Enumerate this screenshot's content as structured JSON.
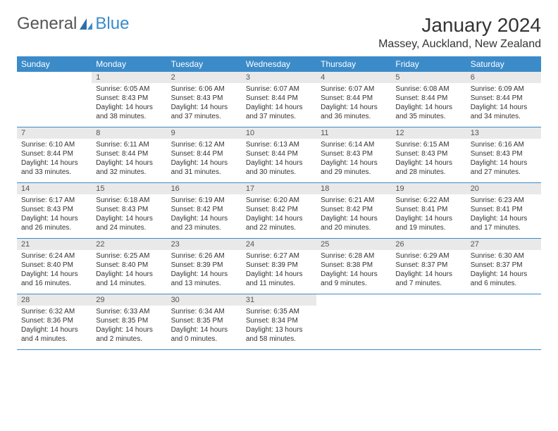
{
  "logo": {
    "text1": "General",
    "text2": "Blue"
  },
  "title": "January 2024",
  "location": "Massey, Auckland, New Zealand",
  "colors": {
    "header_bg": "#3b8bc9",
    "daynum_bg": "#e9e9e9",
    "text": "#333333",
    "rule": "#3b8bc9"
  },
  "dow": [
    "Sunday",
    "Monday",
    "Tuesday",
    "Wednesday",
    "Thursday",
    "Friday",
    "Saturday"
  ],
  "weeks": [
    [
      {
        "n": "",
        "sr": "",
        "ss": "",
        "dl": ""
      },
      {
        "n": "1",
        "sr": "Sunrise: 6:05 AM",
        "ss": "Sunset: 8:43 PM",
        "dl": "Daylight: 14 hours and 38 minutes."
      },
      {
        "n": "2",
        "sr": "Sunrise: 6:06 AM",
        "ss": "Sunset: 8:43 PM",
        "dl": "Daylight: 14 hours and 37 minutes."
      },
      {
        "n": "3",
        "sr": "Sunrise: 6:07 AM",
        "ss": "Sunset: 8:44 PM",
        "dl": "Daylight: 14 hours and 37 minutes."
      },
      {
        "n": "4",
        "sr": "Sunrise: 6:07 AM",
        "ss": "Sunset: 8:44 PM",
        "dl": "Daylight: 14 hours and 36 minutes."
      },
      {
        "n": "5",
        "sr": "Sunrise: 6:08 AM",
        "ss": "Sunset: 8:44 PM",
        "dl": "Daylight: 14 hours and 35 minutes."
      },
      {
        "n": "6",
        "sr": "Sunrise: 6:09 AM",
        "ss": "Sunset: 8:44 PM",
        "dl": "Daylight: 14 hours and 34 minutes."
      }
    ],
    [
      {
        "n": "7",
        "sr": "Sunrise: 6:10 AM",
        "ss": "Sunset: 8:44 PM",
        "dl": "Daylight: 14 hours and 33 minutes."
      },
      {
        "n": "8",
        "sr": "Sunrise: 6:11 AM",
        "ss": "Sunset: 8:44 PM",
        "dl": "Daylight: 14 hours and 32 minutes."
      },
      {
        "n": "9",
        "sr": "Sunrise: 6:12 AM",
        "ss": "Sunset: 8:44 PM",
        "dl": "Daylight: 14 hours and 31 minutes."
      },
      {
        "n": "10",
        "sr": "Sunrise: 6:13 AM",
        "ss": "Sunset: 8:44 PM",
        "dl": "Daylight: 14 hours and 30 minutes."
      },
      {
        "n": "11",
        "sr": "Sunrise: 6:14 AM",
        "ss": "Sunset: 8:43 PM",
        "dl": "Daylight: 14 hours and 29 minutes."
      },
      {
        "n": "12",
        "sr": "Sunrise: 6:15 AM",
        "ss": "Sunset: 8:43 PM",
        "dl": "Daylight: 14 hours and 28 minutes."
      },
      {
        "n": "13",
        "sr": "Sunrise: 6:16 AM",
        "ss": "Sunset: 8:43 PM",
        "dl": "Daylight: 14 hours and 27 minutes."
      }
    ],
    [
      {
        "n": "14",
        "sr": "Sunrise: 6:17 AM",
        "ss": "Sunset: 8:43 PM",
        "dl": "Daylight: 14 hours and 26 minutes."
      },
      {
        "n": "15",
        "sr": "Sunrise: 6:18 AM",
        "ss": "Sunset: 8:43 PM",
        "dl": "Daylight: 14 hours and 24 minutes."
      },
      {
        "n": "16",
        "sr": "Sunrise: 6:19 AM",
        "ss": "Sunset: 8:42 PM",
        "dl": "Daylight: 14 hours and 23 minutes."
      },
      {
        "n": "17",
        "sr": "Sunrise: 6:20 AM",
        "ss": "Sunset: 8:42 PM",
        "dl": "Daylight: 14 hours and 22 minutes."
      },
      {
        "n": "18",
        "sr": "Sunrise: 6:21 AM",
        "ss": "Sunset: 8:42 PM",
        "dl": "Daylight: 14 hours and 20 minutes."
      },
      {
        "n": "19",
        "sr": "Sunrise: 6:22 AM",
        "ss": "Sunset: 8:41 PM",
        "dl": "Daylight: 14 hours and 19 minutes."
      },
      {
        "n": "20",
        "sr": "Sunrise: 6:23 AM",
        "ss": "Sunset: 8:41 PM",
        "dl": "Daylight: 14 hours and 17 minutes."
      }
    ],
    [
      {
        "n": "21",
        "sr": "Sunrise: 6:24 AM",
        "ss": "Sunset: 8:40 PM",
        "dl": "Daylight: 14 hours and 16 minutes."
      },
      {
        "n": "22",
        "sr": "Sunrise: 6:25 AM",
        "ss": "Sunset: 8:40 PM",
        "dl": "Daylight: 14 hours and 14 minutes."
      },
      {
        "n": "23",
        "sr": "Sunrise: 6:26 AM",
        "ss": "Sunset: 8:39 PM",
        "dl": "Daylight: 14 hours and 13 minutes."
      },
      {
        "n": "24",
        "sr": "Sunrise: 6:27 AM",
        "ss": "Sunset: 8:39 PM",
        "dl": "Daylight: 14 hours and 11 minutes."
      },
      {
        "n": "25",
        "sr": "Sunrise: 6:28 AM",
        "ss": "Sunset: 8:38 PM",
        "dl": "Daylight: 14 hours and 9 minutes."
      },
      {
        "n": "26",
        "sr": "Sunrise: 6:29 AM",
        "ss": "Sunset: 8:37 PM",
        "dl": "Daylight: 14 hours and 7 minutes."
      },
      {
        "n": "27",
        "sr": "Sunrise: 6:30 AM",
        "ss": "Sunset: 8:37 PM",
        "dl": "Daylight: 14 hours and 6 minutes."
      }
    ],
    [
      {
        "n": "28",
        "sr": "Sunrise: 6:32 AM",
        "ss": "Sunset: 8:36 PM",
        "dl": "Daylight: 14 hours and 4 minutes."
      },
      {
        "n": "29",
        "sr": "Sunrise: 6:33 AM",
        "ss": "Sunset: 8:35 PM",
        "dl": "Daylight: 14 hours and 2 minutes."
      },
      {
        "n": "30",
        "sr": "Sunrise: 6:34 AM",
        "ss": "Sunset: 8:35 PM",
        "dl": "Daylight: 14 hours and 0 minutes."
      },
      {
        "n": "31",
        "sr": "Sunrise: 6:35 AM",
        "ss": "Sunset: 8:34 PM",
        "dl": "Daylight: 13 hours and 58 minutes."
      },
      {
        "n": "",
        "sr": "",
        "ss": "",
        "dl": ""
      },
      {
        "n": "",
        "sr": "",
        "ss": "",
        "dl": ""
      },
      {
        "n": "",
        "sr": "",
        "ss": "",
        "dl": ""
      }
    ]
  ]
}
